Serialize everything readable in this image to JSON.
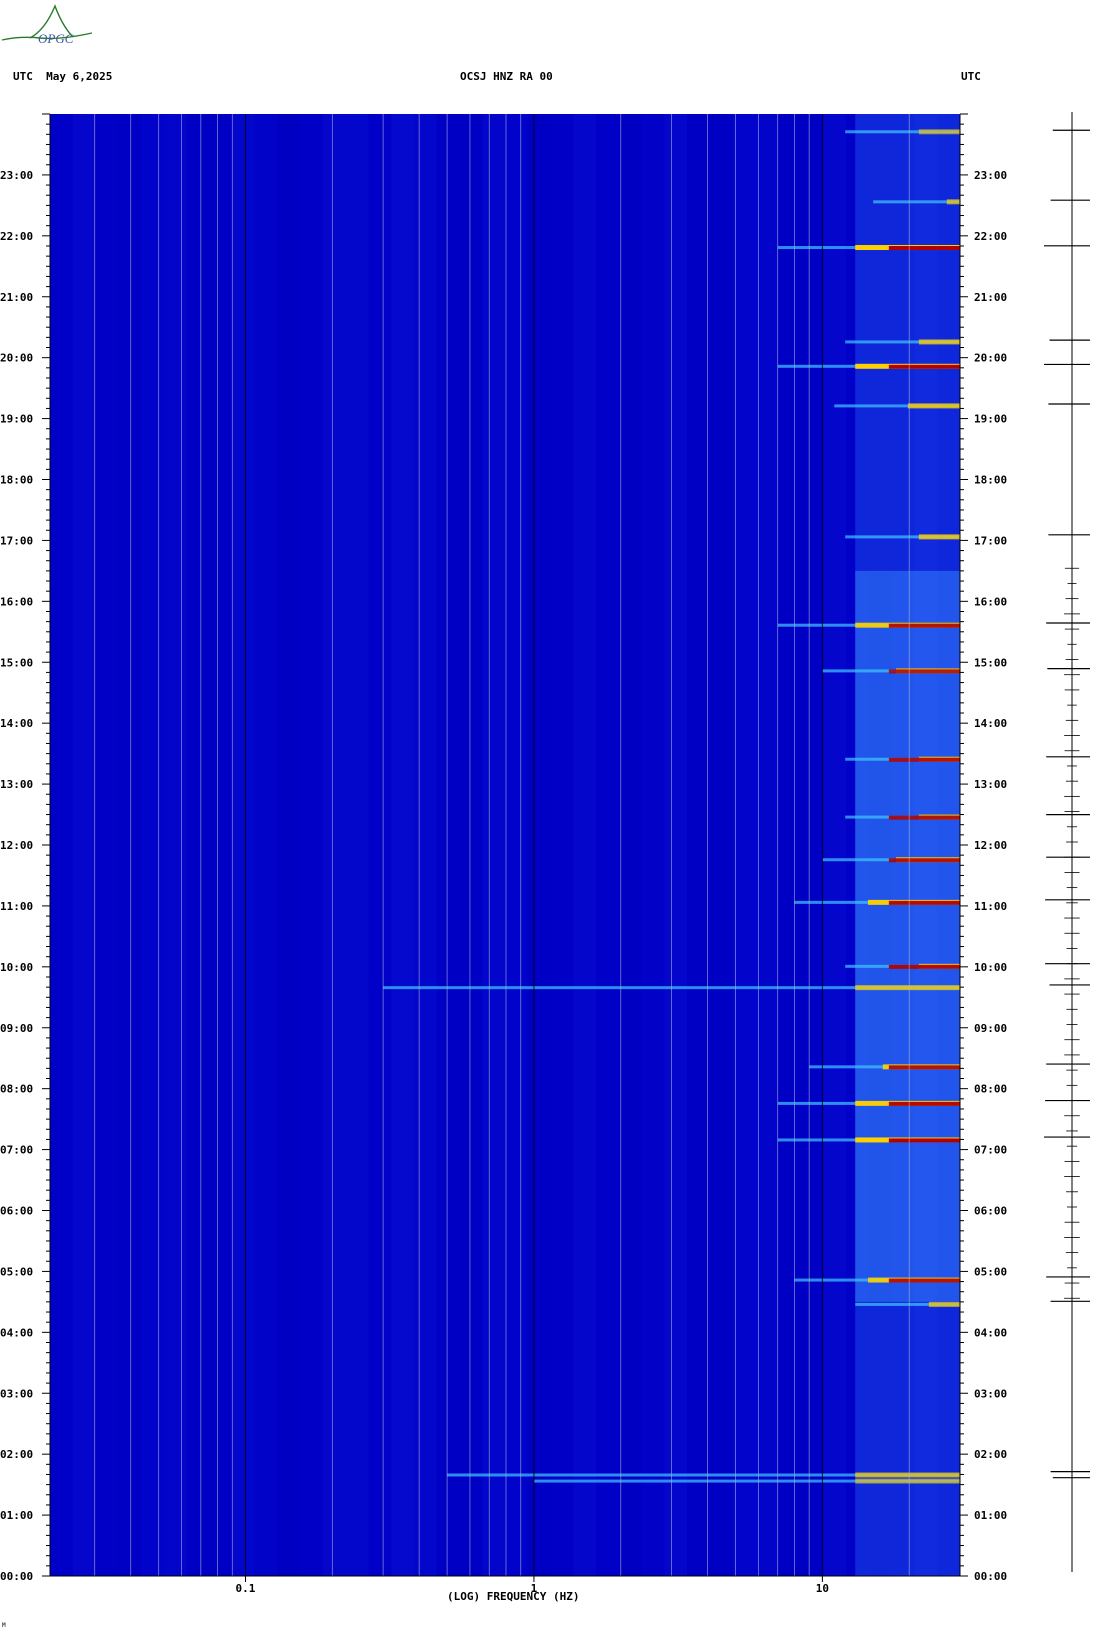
{
  "logo_text": "OPGC",
  "header": {
    "left": "UTC  May 6,2025",
    "center": "OCSJ HNZ RA 00",
    "right": "UTC"
  },
  "colors": {
    "background": "#0000c8",
    "gridline": "#b4b4dc",
    "major_gridline": "#000000",
    "trace": "#000000"
  },
  "chart_data": {
    "type": "heatmap",
    "title": "OCSJ HNZ RA 00",
    "date": "May 6,2025",
    "xlabel": "(LOG) FREQUENCY (HZ)",
    "ylabel": "UTC",
    "x_scale": "log",
    "xlim": [
      0.021,
      30
    ],
    "x_ticks": [
      {
        "value": 0.1,
        "label": "0.1"
      },
      {
        "value": 1,
        "label": "1"
      },
      {
        "value": 10,
        "label": "10"
      }
    ],
    "ylim_hours": [
      0,
      24
    ],
    "y_ticks": [
      "00:00",
      "01:00",
      "02:00",
      "03:00",
      "04:00",
      "05:00",
      "06:00",
      "07:00",
      "08:00",
      "09:00",
      "10:00",
      "11:00",
      "12:00",
      "13:00",
      "14:00",
      "15:00",
      "16:00",
      "17:00",
      "18:00",
      "19:00",
      "20:00",
      "21:00",
      "22:00",
      "23:00"
    ],
    "events": [
      {
        "time": 1.55,
        "fmin": 1.0,
        "intensity": 0.6
      },
      {
        "time": 1.65,
        "fmin": 0.5,
        "intensity": 0.7
      },
      {
        "time": 4.45,
        "fmin": 13,
        "intensity": 0.7
      },
      {
        "time": 4.85,
        "fmin": 8,
        "intensity": 0.9
      },
      {
        "time": 7.15,
        "fmin": 7,
        "intensity": 1.0
      },
      {
        "time": 7.75,
        "fmin": 7,
        "intensity": 0.95
      },
      {
        "time": 8.35,
        "fmin": 9,
        "intensity": 0.9
      },
      {
        "time": 9.65,
        "fmin": 0.3,
        "intensity": 0.75
      },
      {
        "time": 10.0,
        "fmin": 12,
        "intensity": 0.95
      },
      {
        "time": 11.05,
        "fmin": 8,
        "intensity": 0.95
      },
      {
        "time": 11.75,
        "fmin": 10,
        "intensity": 0.9
      },
      {
        "time": 12.45,
        "fmin": 12,
        "intensity": 0.9
      },
      {
        "time": 13.4,
        "fmin": 12,
        "intensity": 0.9
      },
      {
        "time": 14.85,
        "fmin": 10,
        "intensity": 0.85
      },
      {
        "time": 15.6,
        "fmin": 7,
        "intensity": 0.9
      },
      {
        "time": 17.05,
        "fmin": 12,
        "intensity": 0.8
      },
      {
        "time": 19.2,
        "fmin": 11,
        "intensity": 0.8
      },
      {
        "time": 19.85,
        "fmin": 7,
        "intensity": 1.0
      },
      {
        "time": 20.25,
        "fmin": 12,
        "intensity": 0.75
      },
      {
        "time": 21.8,
        "fmin": 7,
        "intensity": 1.0
      },
      {
        "time": 22.55,
        "fmin": 15,
        "intensity": 0.7
      },
      {
        "time": 23.7,
        "fmin": 12,
        "intensity": 0.6
      }
    ],
    "high_activity_hours": [
      4.5,
      16.5
    ]
  },
  "footnote": "M"
}
